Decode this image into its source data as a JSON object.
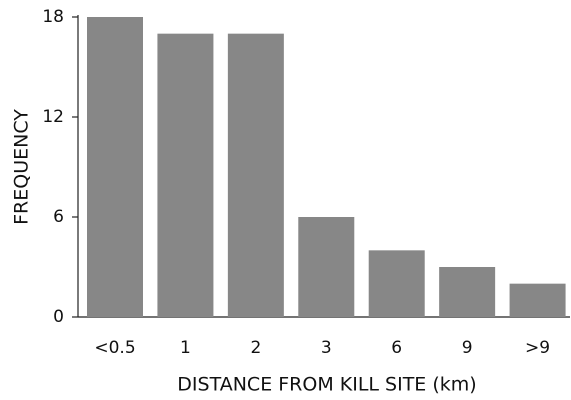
{
  "chart_data": {
    "type": "bar",
    "x_label": "DISTANCE FROM KILL SITE (km)",
    "y_label": "FREQUENCY",
    "categories": [
      "<0.5",
      "1",
      "2",
      "3",
      "6",
      "9",
      ">9"
    ],
    "values": [
      18,
      17,
      17,
      6,
      4,
      3,
      2
    ],
    "color": "#878787",
    "ylim": [
      0,
      18
    ],
    "yticks": [
      0,
      6,
      12,
      18
    ]
  }
}
